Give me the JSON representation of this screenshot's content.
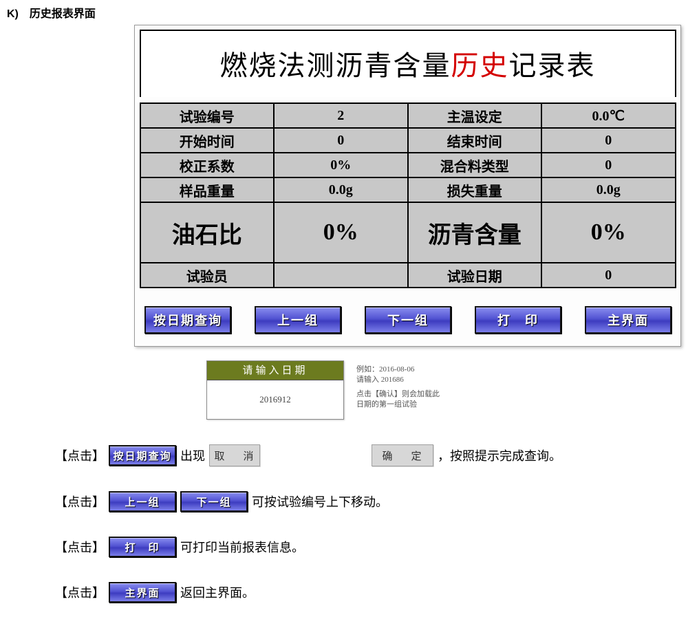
{
  "section_label": "K) 历史报表界面",
  "title": {
    "pre": "燃烧法测沥青含量",
    "red": "历史",
    "post": "记录表"
  },
  "table": {
    "rows": [
      {
        "h": "small",
        "l1": "试验编号",
        "v1": "2",
        "l2": "主温设定",
        "v2": "0.0℃"
      },
      {
        "h": "small",
        "l1": "开始时间",
        "v1": "0",
        "l2": "结束时间",
        "v2": "0"
      },
      {
        "h": "small",
        "l1": "校正系数",
        "v1": "0%",
        "l2": "混合料类型",
        "v2": "0"
      },
      {
        "h": "small",
        "l1": "样品重量",
        "v1": "0.0g",
        "l2": "损失重量",
        "v2": "0.0g"
      },
      {
        "h": "big",
        "l1": "油石比",
        "v1": "0%",
        "l2": "沥青含量",
        "v2": "0%"
      },
      {
        "h": "small",
        "l1": "试验员",
        "v1": "",
        "l2": "试验日期",
        "v2": "0"
      }
    ]
  },
  "buttons": {
    "main": [
      "按日期查询",
      "上一组",
      "下一组",
      "打 印",
      "主界面"
    ],
    "cancel": "取 消",
    "confirm": "确 定"
  },
  "date_popup": {
    "header": "请输入日期",
    "value": "2016912",
    "hint1": "例如：2016-08-06",
    "hint2": "请输入 201686",
    "hint3": "点击【确认】则会加载此日期的第一组试验"
  },
  "instructions": [
    {
      "pre": "【点击】",
      "btns_tiny": [
        "按日期查询"
      ],
      "mid1": "出现",
      "flat1": "取 消",
      "spacer": true,
      "flat2": "确 定",
      "post": "，按照提示完成查询。"
    },
    {
      "pre": "【点击】",
      "btns_tiny": [
        "上一组",
        "下一组"
      ],
      "post": "可按试验编号上下移动。"
    },
    {
      "pre": "【点击】",
      "btns_tiny": [
        "打 印"
      ],
      "post": "可打印当前报表信息。"
    },
    {
      "pre": "【点击】",
      "btns_tiny": [
        "主界面"
      ],
      "post": "返回主界面。"
    }
  ]
}
